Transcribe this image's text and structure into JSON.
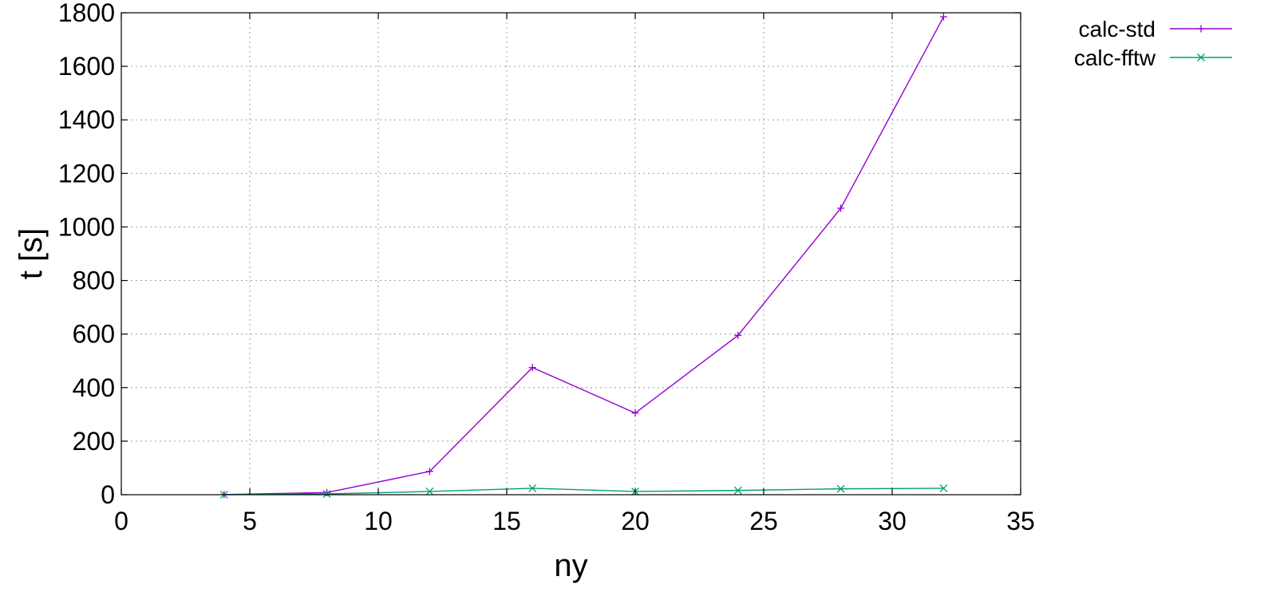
{
  "chart_data": {
    "type": "line",
    "title": "",
    "xlabel": "ny",
    "ylabel": "t [s]",
    "xlim": [
      0,
      35
    ],
    "ylim": [
      0,
      1800
    ],
    "xticks": [
      0,
      5,
      10,
      15,
      20,
      25,
      30,
      35
    ],
    "yticks": [
      0,
      200,
      400,
      600,
      800,
      1000,
      1200,
      1400,
      1600,
      1800
    ],
    "grid": true,
    "legend_position": "top-right-outside",
    "series": [
      {
        "name": "calc-std",
        "color": "#9400d3",
        "marker": "plus",
        "x": [
          4,
          8,
          12,
          16,
          20,
          24,
          28,
          32
        ],
        "y": [
          0.5,
          8,
          87,
          475,
          305,
          595,
          1070,
          1785
        ]
      },
      {
        "name": "calc-fftw",
        "color": "#009e73",
        "marker": "cross",
        "x": [
          4,
          8,
          12,
          16,
          20,
          24,
          28,
          32
        ],
        "y": [
          0.3,
          3,
          12,
          24,
          12,
          16,
          22,
          24
        ]
      }
    ]
  }
}
